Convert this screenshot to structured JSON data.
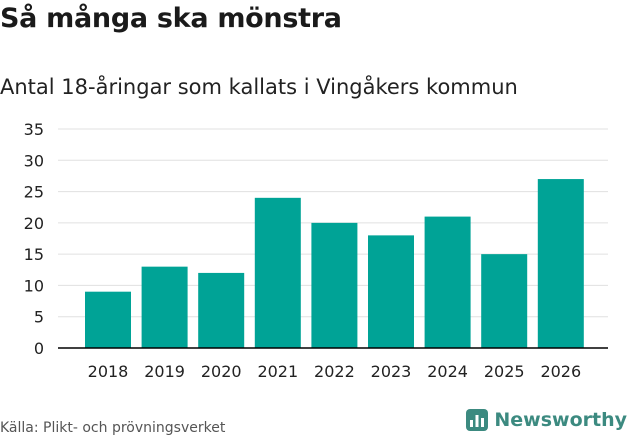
{
  "header": {
    "title": "Så många ska mönstra",
    "subtitle": "Antal 18-åringar som kallats i Vingåkers kommun"
  },
  "footer": {
    "source": "Källa: Plikt- och prövningsverket",
    "brand": "Newsworthy"
  },
  "colors": {
    "bar": "#00a396",
    "grid": "#e0e0e0",
    "axis": "#000000",
    "brand": "#3c8a80"
  },
  "chart_data": {
    "type": "bar",
    "title": "Så många ska mönstra",
    "subtitle": "Antal 18-åringar som kallats i Vingåkers kommun",
    "xlabel": "",
    "ylabel": "",
    "categories": [
      "2018",
      "2019",
      "2020",
      "2021",
      "2022",
      "2023",
      "2024",
      "2025",
      "2026"
    ],
    "values": [
      9,
      13,
      12,
      24,
      20,
      18,
      21,
      15,
      27
    ],
    "ylim": [
      0,
      35
    ],
    "yticks": [
      0,
      5,
      10,
      15,
      20,
      25,
      30,
      35
    ],
    "grid": true,
    "legend": "none"
  }
}
